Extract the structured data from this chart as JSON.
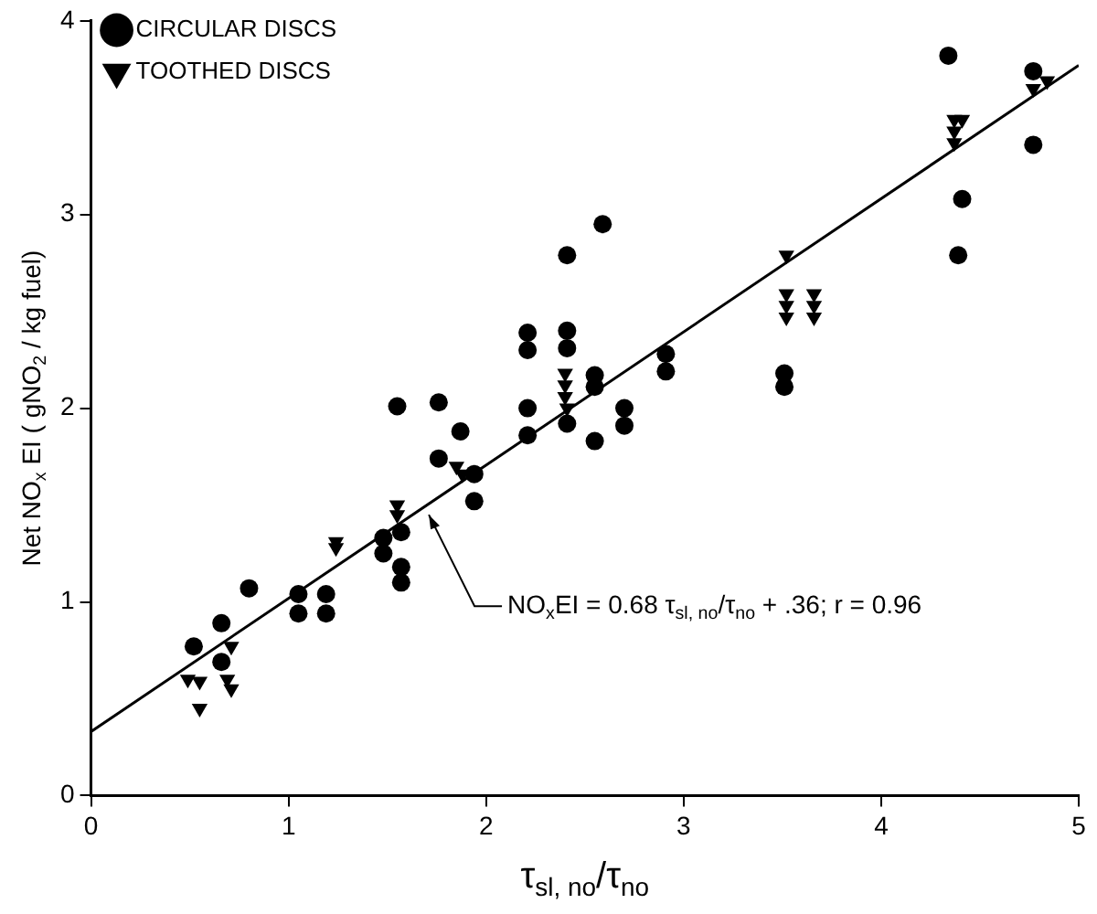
{
  "chart_data": {
    "type": "scatter",
    "xlabel": "τ$_{sl, no}$/τ$_{no}$",
    "ylabel": "Net NO$_{x}$ EI ( gNO$_{2}$ / kg fuel)",
    "xlim": [
      0,
      5
    ],
    "xticks": [
      0,
      1,
      2,
      3,
      4,
      5
    ],
    "ylim": [
      0,
      4
    ],
    "yticks": [
      0,
      1,
      2,
      3,
      4
    ],
    "grid": false,
    "legend": "top left",
    "series": [
      {
        "name": "CIRCULAR DISCS",
        "color": "#000000",
        "marker": "circle",
        "x": [
          0.52,
          0.66,
          0.66,
          0.8,
          1.05,
          1.05,
          1.19,
          1.19,
          1.48,
          1.48,
          1.57,
          1.57,
          1.57,
          1.55,
          1.76,
          1.87,
          1.76,
          1.94,
          1.94,
          2.21,
          2.21,
          2.21,
          2.21,
          2.41,
          2.41,
          2.41,
          2.41,
          2.55,
          2.55,
          2.55,
          2.59,
          2.7,
          2.7,
          2.91,
          2.91,
          3.51,
          3.51,
          4.34,
          4.39,
          4.41,
          4.77,
          4.77
        ],
        "values": [
          0.77,
          0.89,
          0.69,
          1.07,
          1.04,
          0.94,
          1.04,
          0.94,
          1.33,
          1.25,
          1.36,
          1.18,
          1.1,
          2.01,
          2.03,
          1.88,
          1.74,
          1.66,
          1.52,
          2.39,
          2.3,
          2.0,
          1.86,
          2.79,
          2.4,
          2.31,
          1.92,
          2.17,
          2.11,
          1.83,
          2.95,
          2.0,
          1.91,
          2.28,
          2.19,
          2.18,
          2.11,
          3.82,
          2.79,
          3.08,
          3.74,
          3.36
        ]
      },
      {
        "name": "TOOTHED DISCS",
        "color": "#000000",
        "marker": "triangle",
        "x": [
          0.49,
          0.55,
          0.55,
          0.71,
          0.69,
          0.71,
          1.24,
          1.24,
          1.55,
          1.55,
          1.85,
          1.88,
          1.94,
          2.4,
          2.4,
          2.4,
          2.41,
          3.52,
          3.52,
          3.52,
          3.52,
          3.66,
          3.66,
          3.66,
          4.37,
          4.41,
          4.37,
          4.37,
          4.77,
          4.84,
          4.77
        ],
        "values": [
          0.6,
          0.59,
          0.45,
          0.77,
          0.6,
          0.55,
          1.31,
          1.28,
          1.5,
          1.45,
          1.7,
          1.66,
          null,
          2.18,
          2.12,
          2.06,
          2.0,
          2.79,
          2.59,
          2.53,
          2.47,
          2.59,
          2.53,
          2.47,
          3.49,
          3.49,
          3.43,
          3.37,
          null,
          3.69,
          3.65
        ]
      },
      {
        "type": "line",
        "color": "#000000",
        "marker": "none",
        "line_style": "solid",
        "x": [
          0,
          5
        ],
        "values": [
          0.33,
          3.77
        ]
      }
    ],
    "annotations": [
      {
        "text": "NO$_{x}$EI = 0.68 τ$_{sl, no}$/τ$_{no}$ + .36; r = 0.96",
        "x": 1.71,
        "y": 1.45
      }
    ]
  }
}
